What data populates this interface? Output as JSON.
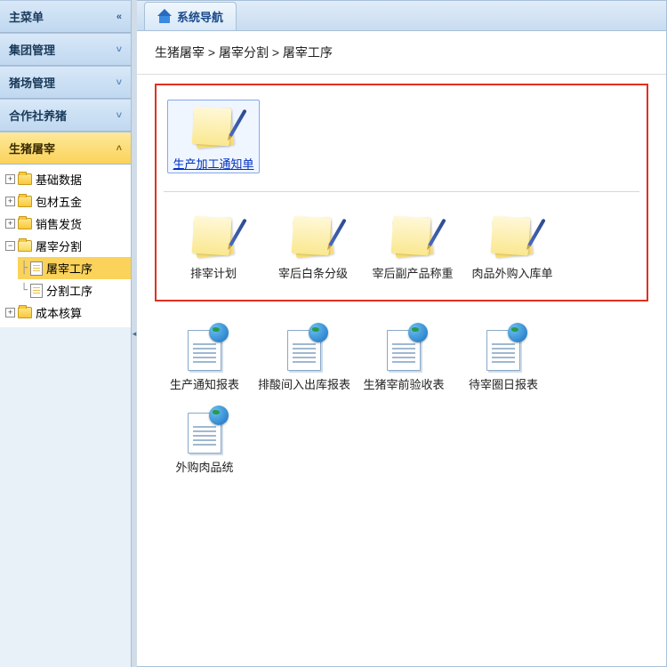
{
  "sidebar": {
    "menus": [
      {
        "label": "主菜单",
        "active": false,
        "expanded": false
      },
      {
        "label": "集团管理",
        "active": false,
        "expanded": false
      },
      {
        "label": "猪场管理",
        "active": false,
        "expanded": false
      },
      {
        "label": "合作社养猪",
        "active": false,
        "expanded": false
      },
      {
        "label": "生猪屠宰",
        "active": true,
        "expanded": true
      }
    ],
    "tree": [
      {
        "label": "基础数据",
        "type": "folder",
        "expandable": true
      },
      {
        "label": "包材五金",
        "type": "folder",
        "expandable": true
      },
      {
        "label": "销售发货",
        "type": "folder",
        "expandable": true
      },
      {
        "label": "屠宰分割",
        "type": "folder",
        "expandable": true,
        "open": true,
        "children": [
          {
            "label": "屠宰工序",
            "type": "doc",
            "selected": true
          },
          {
            "label": "分割工序",
            "type": "doc"
          }
        ]
      },
      {
        "label": "成本核算",
        "type": "folder",
        "expandable": true
      }
    ]
  },
  "tab": {
    "title": "系统导航"
  },
  "breadcrumb": {
    "text": "生猪屠宰 > 屠宰分割 > 屠宰工序"
  },
  "groups": {
    "highlighted": {
      "row1": [
        {
          "label": "生产加工通知单",
          "selected": true
        }
      ],
      "row2": [
        {
          "label": "排宰计划"
        },
        {
          "label": "宰后白条分级"
        },
        {
          "label": "宰后副产品称重"
        },
        {
          "label": "肉品外购入库单"
        }
      ]
    },
    "reports": [
      {
        "label": "生产通知报表"
      },
      {
        "label": "排酸间入出库报表"
      },
      {
        "label": "生猪宰前验收表"
      },
      {
        "label": "待宰圈日报表"
      },
      {
        "label": "外购肉品统"
      }
    ]
  },
  "chevrons": {
    "expand": "»",
    "collapse": "«",
    "down": "˅",
    "up": "˄"
  }
}
